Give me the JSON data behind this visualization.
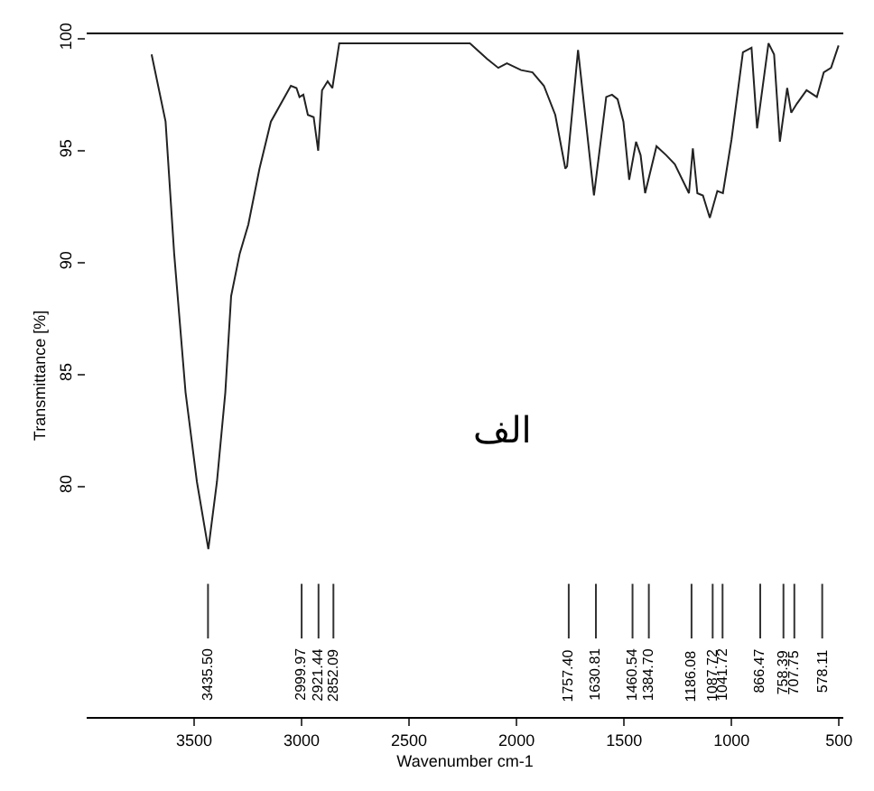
{
  "chart_data": {
    "type": "line",
    "xlabel": "Wavenumber cm-1",
    "ylabel": "Transmittance [%]",
    "xlim": [
      4000,
      480
    ],
    "xticks": [
      3500,
      3000,
      2500,
      2000,
      1500,
      1000,
      500
    ],
    "ylim": [
      69.7,
      100.2
    ],
    "yticks": [
      80,
      85,
      90,
      95,
      100
    ],
    "marker": "none",
    "line_style": "solid",
    "series": [
      {
        "color": "#222222",
        "x": [
          3698,
          3633,
          3593,
          3540,
          3487,
          3434,
          3394,
          3355,
          3328,
          3288,
          3248,
          3196,
          3143,
          3050,
          3024,
          3010,
          2992,
          2971,
          2944,
          2923,
          2905,
          2879,
          2857,
          2825,
          2772,
          2693,
          2217,
          2137,
          2085,
          2045,
          1979,
          1926,
          1873,
          1820,
          1773,
          1765,
          1714,
          1640,
          1583,
          1556,
          1530,
          1503,
          1476,
          1444,
          1423,
          1402,
          1349,
          1304,
          1264,
          1198,
          1180,
          1159,
          1133,
          1101,
          1066,
          1040,
          1000,
          947,
          907,
          881,
          828,
          802,
          775,
          741,
          722,
          696,
          651,
          603,
          571,
          537,
          502
        ],
        "values": [
          99.3,
          96.3,
          90.4,
          84.2,
          80.2,
          77.2,
          80.2,
          84.2,
          88.5,
          90.4,
          91.7,
          94.2,
          96.3,
          97.9,
          97.8,
          97.4,
          97.5,
          96.6,
          96.5,
          95.0,
          97.7,
          98.1,
          97.8,
          99.8,
          99.8,
          99.8,
          99.8,
          99.1,
          98.7,
          98.9,
          98.6,
          98.5,
          97.9,
          96.6,
          94.2,
          94.3,
          99.5,
          93.0,
          97.4,
          97.5,
          97.3,
          96.3,
          93.7,
          95.4,
          94.8,
          93.1,
          95.2,
          94.8,
          94.4,
          93.1,
          95.1,
          93.1,
          93.0,
          92.0,
          93.2,
          93.1,
          95.5,
          99.4,
          99.6,
          96.0,
          99.8,
          99.3,
          95.4,
          97.8,
          96.7,
          97.1,
          97.7,
          97.4,
          98.5,
          98.7,
          99.7
        ]
      }
    ],
    "annotations": [
      "الف",
      {
        "text": "3435.50",
        "x": 3435.5
      },
      {
        "text": "2999.97",
        "x": 2999.97
      },
      {
        "text": "2921.44",
        "x": 2921.44
      },
      {
        "text": "2852.09",
        "x": 2852.09
      },
      {
        "text": "1757.40",
        "x": 1757.4
      },
      {
        "text": "1630.81",
        "x": 1630.81
      },
      {
        "text": "1460.54",
        "x": 1460.54
      },
      {
        "text": "1384.70",
        "x": 1384.7
      },
      {
        "text": "1186.08",
        "x": 1186.08
      },
      {
        "text": "1087.72",
        "x": 1087.72
      },
      {
        "text": "1041.72",
        "x": 1041.72
      },
      {
        "text": "866.47",
        "x": 866.47
      },
      {
        "text": "758.39",
        "x": 758.39
      },
      {
        "text": "707.75",
        "x": 707.75
      },
      {
        "text": "578.11",
        "x": 578.11
      }
    ]
  }
}
